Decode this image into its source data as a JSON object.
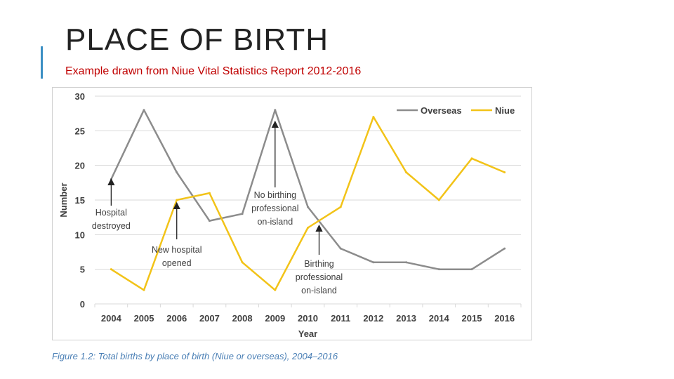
{
  "slide": {
    "title": "PLACE OF BIRTH",
    "subtitle": "Example drawn from Niue  Vital Statistics Report 2012-2016",
    "caption": "Figure 1.2: Total births by place of birth (Niue or overseas), 2004–2016"
  },
  "colors": {
    "accent": "#3b8fc4",
    "subtitle": "#c00000",
    "caption": "#4a7fb5",
    "overseas": "#8c8c8c",
    "niue": "#f2c318",
    "grid": "#d9d9d9",
    "text": "#404040"
  },
  "chart_data": {
    "type": "line",
    "title": "",
    "xlabel": "Year",
    "ylabel": "Number",
    "categories": [
      "2004",
      "2005",
      "2006",
      "2007",
      "2008",
      "2009",
      "2010",
      "2011",
      "2012",
      "2013",
      "2014",
      "2015",
      "2016"
    ],
    "ylim": [
      0,
      30
    ],
    "yticks": [
      0,
      5,
      10,
      15,
      20,
      25,
      30
    ],
    "grid": true,
    "legend_position": "top-right",
    "series": [
      {
        "name": "Overseas",
        "values": [
          18,
          28,
          19,
          12,
          13,
          28,
          14,
          8,
          6,
          6,
          5,
          5,
          8
        ]
      },
      {
        "name": "Niue",
        "values": [
          5,
          2,
          15,
          16,
          6,
          2,
          11,
          14,
          27,
          19,
          15,
          21,
          19
        ]
      }
    ],
    "annotations": [
      {
        "lines": [
          "Hospital",
          "destroyed"
        ],
        "year": "2004",
        "points_to": 18
      },
      {
        "lines": [
          "New hospital",
          "opened"
        ],
        "year": "2006",
        "points_to": 15
      },
      {
        "lines": [
          "No birthing",
          "professional",
          "on-island"
        ],
        "year": "2009",
        "points_to": 26
      },
      {
        "lines": [
          "Birthing",
          "professional",
          "on-island"
        ],
        "year": "2010",
        "points_to": 11
      }
    ]
  }
}
